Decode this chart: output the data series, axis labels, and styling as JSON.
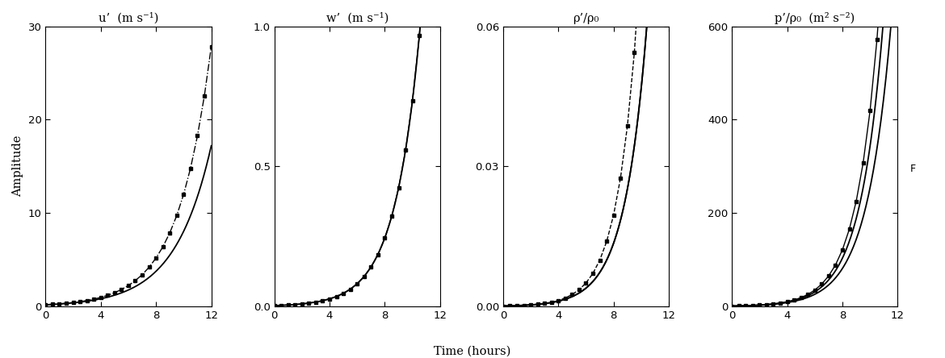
{
  "panels": [
    {
      "title": "u’  (m s⁻¹)",
      "ylim": [
        0,
        30
      ],
      "yticks": [
        0,
        10,
        20,
        30
      ],
      "ylabel": "Amplitude",
      "smooth_rate": 0.38,
      "smooth_scale": 0.18,
      "marker_rate": 0.42,
      "marker_scale": 0.18,
      "marker_linestyle": "-.",
      "has_second_curve": false
    },
    {
      "title": "w’  (m s⁻¹)",
      "ylim": [
        0,
        1.0
      ],
      "yticks": [
        0.0,
        0.5,
        1.0
      ],
      "ylabel": "",
      "smooth_rate": 0.55,
      "smooth_scale": 0.003,
      "marker_rate": 0.55,
      "marker_scale": 0.003,
      "marker_linestyle": "-",
      "has_second_curve": false
    },
    {
      "title": "ρ’/ρ₀",
      "ylim": [
        0,
        0.06
      ],
      "yticks": [
        0.0,
        0.03,
        0.06
      ],
      "ylabel": "",
      "smooth_rate": 0.62,
      "smooth_scale": 9.5e-05,
      "marker_rate": 0.68,
      "marker_scale": 8.5e-05,
      "marker_linestyle": "--",
      "has_second_curve": true,
      "second_rate": 0.62,
      "second_scale": 9.5e-05
    },
    {
      "title": "p’/ρ₀  (m² s⁻²)",
      "ylim": [
        0,
        600
      ],
      "yticks": [
        0,
        200,
        400,
        600
      ],
      "ylabel": "",
      "smooth_rate": 0.6,
      "smooth_scale": 0.85,
      "marker_rate": 0.62,
      "marker_scale": 0.85,
      "marker_linestyle": "-",
      "has_second_curve": true,
      "second_rate": 0.57,
      "second_scale": 0.85
    }
  ],
  "time_smooth_n": 200,
  "time_smooth_max": 12.0,
  "time_markers": [
    0.0,
    0.5,
    1.0,
    1.5,
    2.0,
    2.5,
    3.0,
    3.5,
    4.0,
    4.5,
    5.0,
    5.5,
    6.0,
    6.5,
    7.0,
    7.5,
    8.0,
    8.5,
    9.0,
    9.5,
    10.0,
    10.5,
    11.0,
    11.5,
    12.0
  ],
  "xlabel": "Time (hours)",
  "background_color": "#ffffff",
  "line_color": "#000000"
}
